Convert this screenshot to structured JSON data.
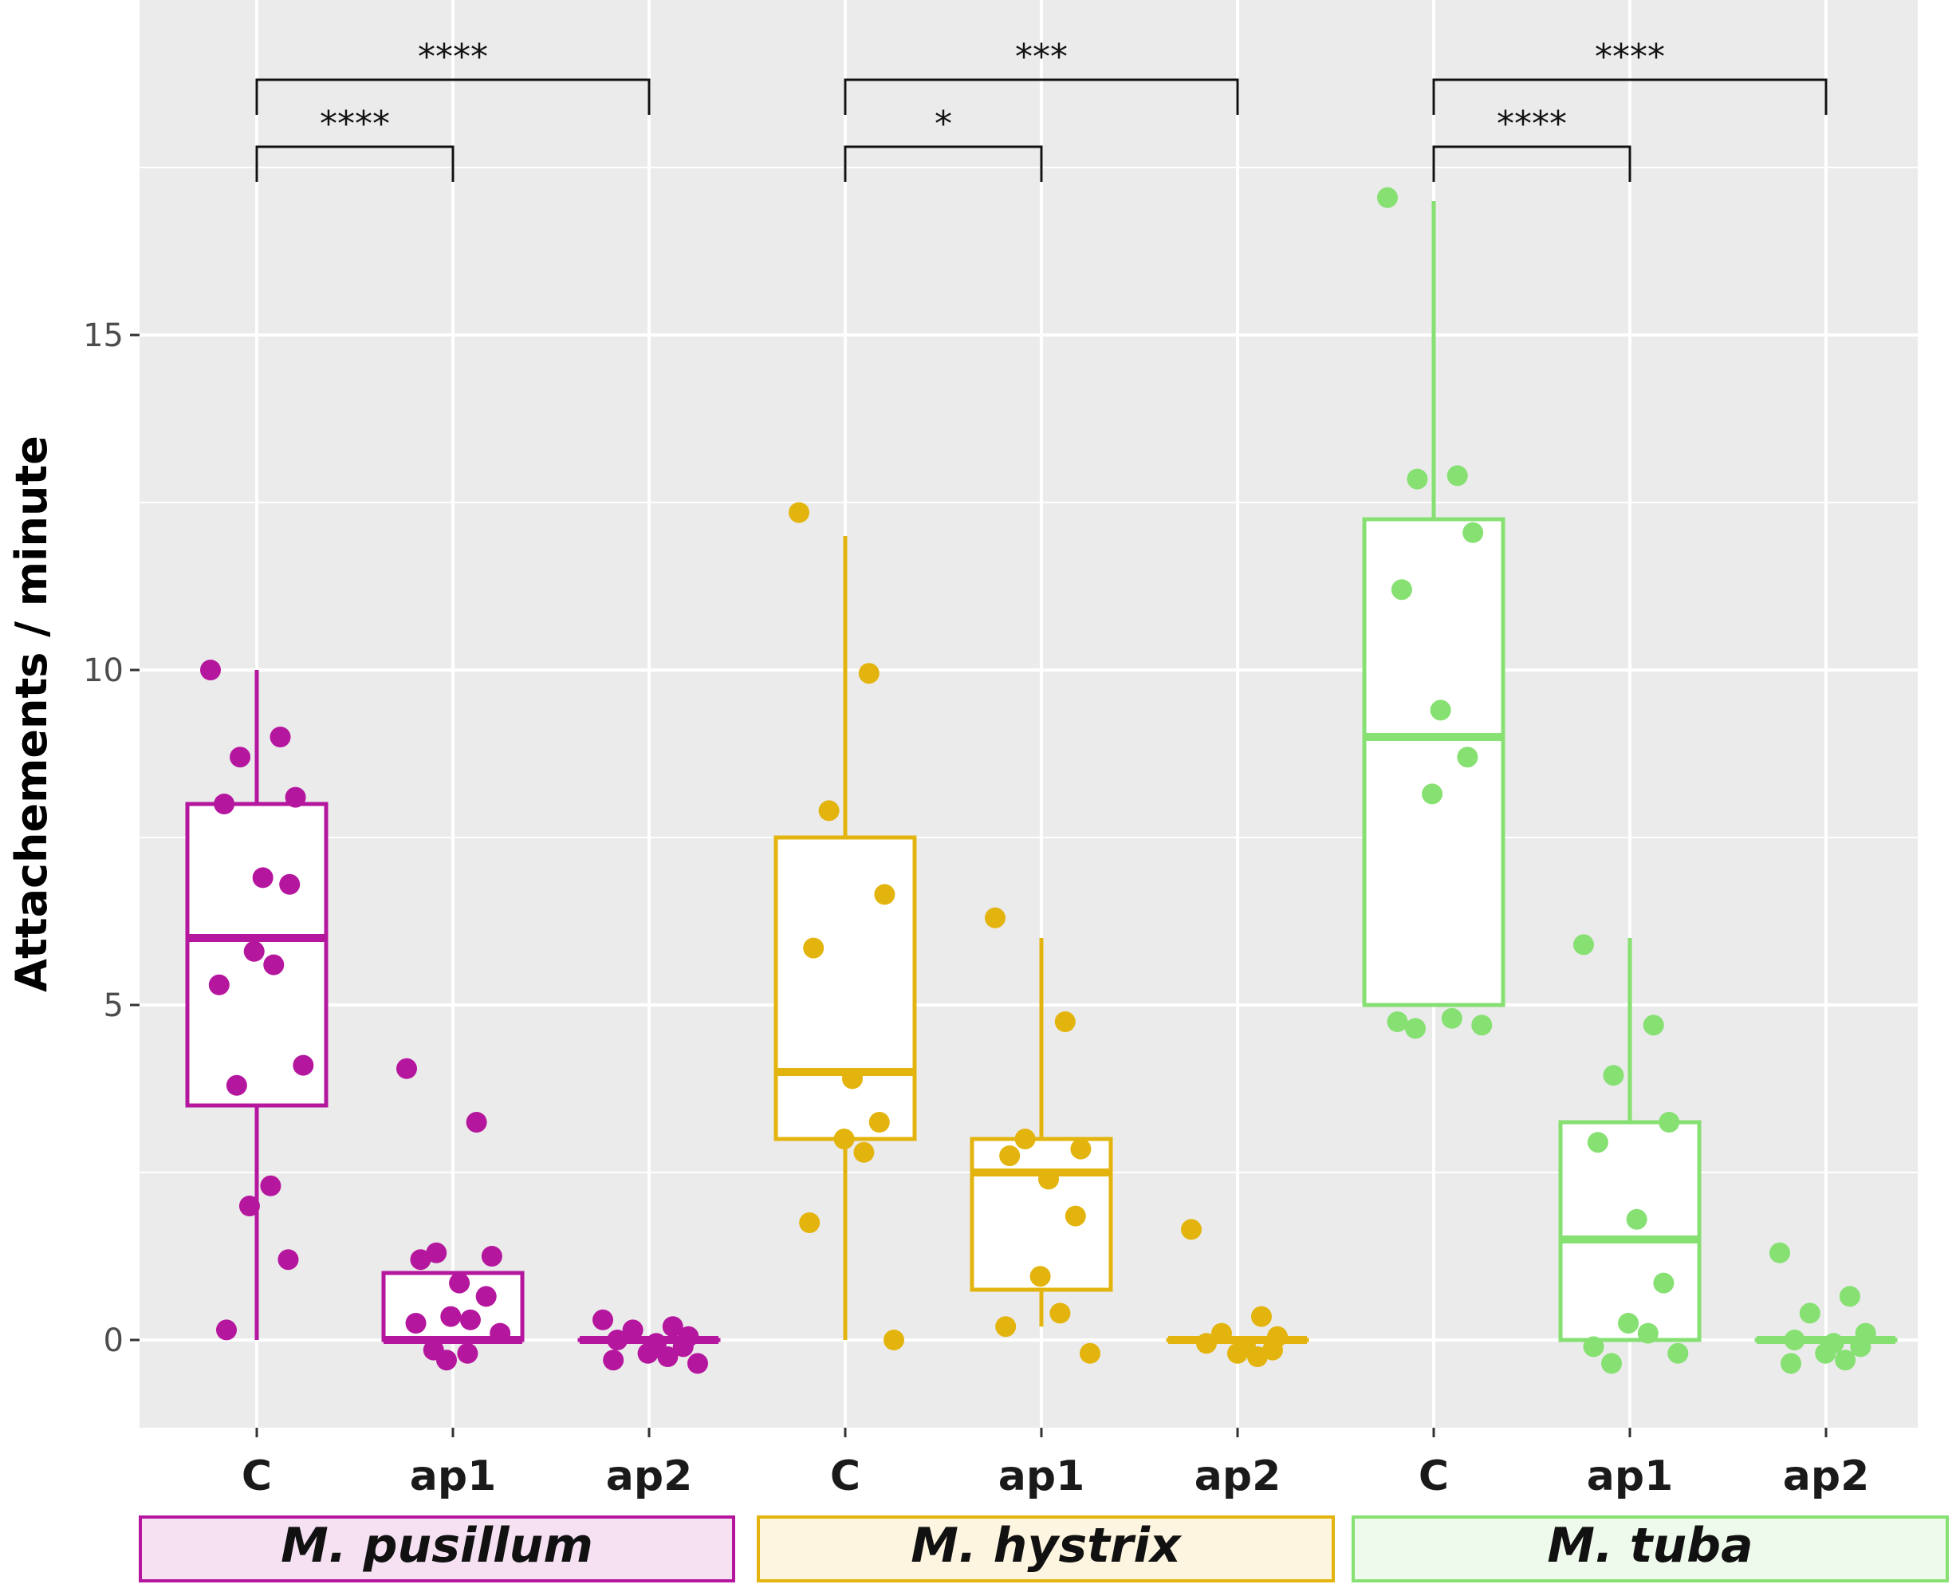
{
  "chart_data": {
    "type": "boxplot",
    "ylabel": "Attachements / minute",
    "xlabel": "",
    "ylim": [
      -1.4,
      19.8
    ],
    "yticks": [
      0,
      5,
      10,
      15
    ],
    "categories": [
      "C",
      "ap1",
      "ap2"
    ],
    "grid": true,
    "colors": {
      "M. pusillum": "#b5169e",
      "M. hystrix": "#e3b40d",
      "M. tuba": "#86e072"
    },
    "strip_fills": {
      "M. pusillum": "#f6e1f3",
      "M. hystrix": "#fdf5e0",
      "M. tuba": "#eefaeb"
    },
    "groups": [
      {
        "name": "M. pusillum",
        "boxes": [
          {
            "category": "C",
            "q1": 3.5,
            "median": 6,
            "q3": 8,
            "whisker_low": 0,
            "whisker_high": 10,
            "points": [
              10,
              9,
              8.7,
              8.1,
              8.0,
              6.9,
              6.8,
              5.8,
              5.6,
              5.3,
              4.1,
              3.8,
              2.3,
              2.0,
              1.2,
              0.15
            ]
          },
          {
            "category": "ap1",
            "q1": 0,
            "median": 0,
            "q3": 1,
            "whisker_low": 0,
            "whisker_high": 1,
            "points": [
              4.05,
              3.25,
              1.3,
              1.25,
              1.2,
              0.85,
              0.65,
              0.35,
              0.3,
              0.25,
              0.1,
              -0.15,
              -0.2,
              -0.3
            ]
          },
          {
            "category": "ap2",
            "q1": 0,
            "median": 0,
            "q3": 0,
            "whisker_low": 0,
            "whisker_high": 0,
            "points": [
              0.3,
              0.2,
              0.15,
              0.05,
              0.0,
              -0.05,
              -0.1,
              -0.2,
              -0.25,
              -0.3,
              -0.35
            ]
          }
        ],
        "comparisons": [
          {
            "from": "C",
            "to": "ap1",
            "label": "****"
          },
          {
            "from": "C",
            "to": "ap2",
            "label": "****"
          }
        ]
      },
      {
        "name": "M. hystrix",
        "boxes": [
          {
            "category": "C",
            "q1": 3,
            "median": 4,
            "q3": 7.5,
            "whisker_low": 0,
            "whisker_high": 12,
            "points": [
              12.35,
              9.95,
              7.9,
              6.65,
              5.85,
              3.9,
              3.25,
              3.0,
              2.8,
              1.75,
              0.0
            ]
          },
          {
            "category": "ap1",
            "q1": 0.75,
            "median": 2.5,
            "q3": 3,
            "whisker_low": 0.2,
            "whisker_high": 6,
            "points": [
              6.3,
              4.75,
              3.0,
              2.85,
              2.75,
              2.4,
              1.85,
              0.95,
              0.4,
              0.2,
              -0.2
            ]
          },
          {
            "category": "ap2",
            "q1": 0,
            "median": 0,
            "q3": 0,
            "whisker_low": 0,
            "whisker_high": 0,
            "points": [
              1.65,
              0.35,
              0.1,
              0.05,
              -0.05,
              -0.1,
              -0.15,
              -0.2,
              -0.25
            ]
          }
        ],
        "comparisons": [
          {
            "from": "C",
            "to": "ap1",
            "label": "*"
          },
          {
            "from": "C",
            "to": "ap2",
            "label": "***"
          }
        ]
      },
      {
        "name": "M. tuba",
        "boxes": [
          {
            "category": "C",
            "q1": 5,
            "median": 9,
            "q3": 12.25,
            "whisker_low": 5,
            "whisker_high": 17,
            "points": [
              17.05,
              12.9,
              12.85,
              12.05,
              11.2,
              9.4,
              8.7,
              8.15,
              4.8,
              4.75,
              4.7,
              4.65
            ]
          },
          {
            "category": "ap1",
            "q1": 0,
            "median": 1.5,
            "q3": 3.25,
            "whisker_low": 0,
            "whisker_high": 6,
            "points": [
              5.9,
              4.7,
              3.95,
              3.25,
              2.95,
              1.8,
              0.85,
              0.25,
              0.1,
              -0.1,
              -0.2,
              -0.35
            ]
          },
          {
            "category": "ap2",
            "q1": 0,
            "median": 0,
            "q3": 0,
            "whisker_low": 0,
            "whisker_high": 0,
            "points": [
              1.3,
              0.65,
              0.4,
              0.1,
              0.0,
              -0.05,
              -0.1,
              -0.2,
              -0.3,
              -0.35
            ]
          }
        ],
        "comparisons": [
          {
            "from": "C",
            "to": "ap1",
            "label": "****"
          },
          {
            "from": "C",
            "to": "ap2",
            "label": "****"
          }
        ]
      }
    ]
  }
}
